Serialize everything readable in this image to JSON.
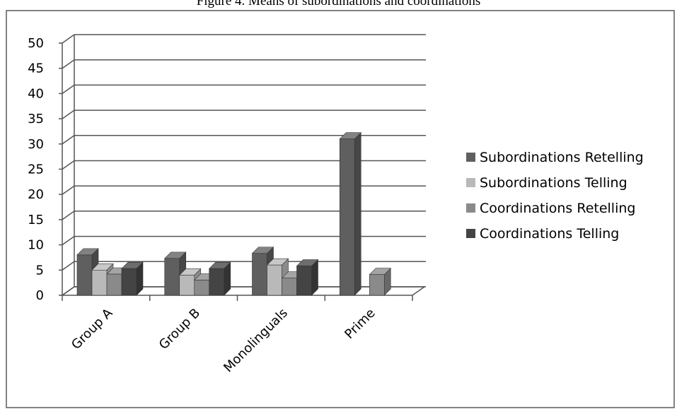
{
  "figure_caption": "Figure 4. Means of subordinations and coordinations",
  "chart_data": {
    "type": "bar",
    "categories": [
      "Group A",
      "Group B",
      "Monolinguals",
      "Prime"
    ],
    "series": [
      {
        "name": "Subordinations Retelling",
        "color": "#5f5f5f",
        "values": [
          8,
          7.3,
          8.3,
          31
        ]
      },
      {
        "name": "Subordinations Telling",
        "color": "#b9b9b9",
        "values": [
          5,
          4,
          6,
          0
        ]
      },
      {
        "name": "Coordinations Retelling",
        "color": "#8a8a8a",
        "values": [
          4.2,
          3,
          3.4,
          4.1
        ]
      },
      {
        "name": "Coordinations Telling",
        "color": "#444444",
        "values": [
          5.3,
          5.3,
          5.8,
          0
        ]
      }
    ],
    "y_ticks": [
      "0",
      "5",
      "10",
      "15",
      "20",
      "25",
      "30",
      "35",
      "40",
      "45",
      "50"
    ],
    "ylim": [
      0,
      50
    ],
    "grid": true,
    "legend_position": "right"
  }
}
